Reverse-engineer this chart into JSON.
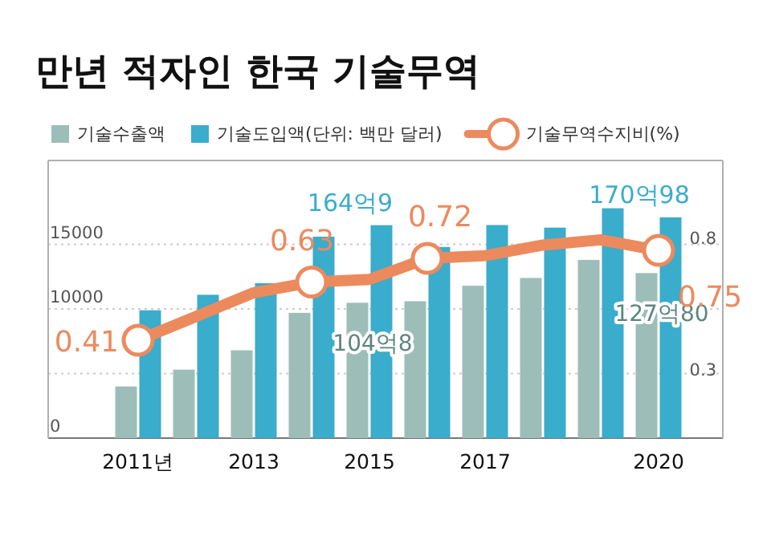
{
  "chart_data": {
    "type": "bar",
    "title": "만년 적자인 한국 기술무역",
    "categories": [
      "2011년",
      null,
      "2013",
      null,
      "2015",
      null,
      "2017",
      null,
      null,
      "2020"
    ],
    "series": [
      {
        "name": "기술수출액",
        "color": "#9dbdb8",
        "values": [
          4000,
          5300,
          6800,
          9700,
          10480,
          10600,
          11800,
          12400,
          13800,
          12780
        ]
      },
      {
        "name": "기술도입액(단위: 백만 달러)",
        "color": "#3aaccc",
        "values": [
          9900,
          11100,
          12000,
          15600,
          16490,
          14800,
          16500,
          16300,
          17800,
          17098
        ]
      },
      {
        "name": "기술무역수지비(%)",
        "type": "line",
        "axis": "y2",
        "color": "#ec8a5e",
        "marker": "circle",
        "values": [
          0.41,
          0.5,
          0.59,
          0.63,
          0.64,
          0.72,
          0.73,
          0.77,
          0.79,
          0.75
        ],
        "value_labels": [
          "0.41",
          null,
          null,
          "0.63",
          null,
          "0.72",
          null,
          null,
          null,
          "0.75"
        ]
      }
    ],
    "annotations": [
      {
        "text": "164억9",
        "x": "2015",
        "y": 16490
      },
      {
        "text": "104억8",
        "x": "2015",
        "y": 10480
      },
      {
        "text": "170억98",
        "x": "2020",
        "y": 17098
      },
      {
        "text": "127억80",
        "x": "2020",
        "y": 12780
      }
    ],
    "ylim": [
      0,
      21500
    ],
    "yticks": [
      0,
      {
        "value": 5000,
        "label": null
      },
      10000,
      15000
    ],
    "y2lim": [
      0.04,
      1.09
    ],
    "y2ticks": [
      0.3,
      0.8
    ],
    "grid": "y",
    "legend": "top"
  }
}
